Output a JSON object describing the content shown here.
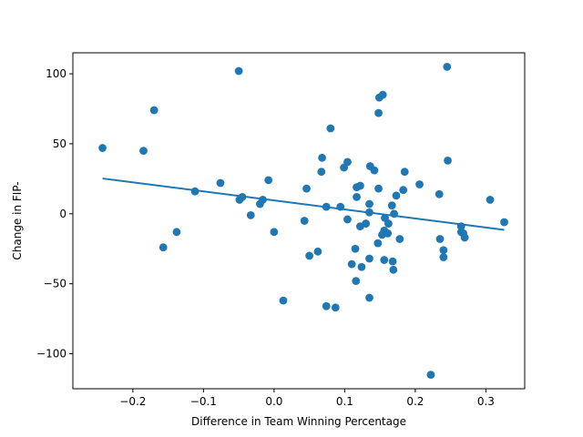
{
  "chart_data": {
    "type": "scatter",
    "xlabel": "Difference in Team Winning Percentage",
    "ylabel": "Change in FIP-",
    "xlim": [
      -0.285,
      0.355
    ],
    "ylim": [
      -125,
      115
    ],
    "grid": false,
    "x_ticks": [
      -0.2,
      -0.1,
      0.0,
      0.1,
      0.2,
      0.3
    ],
    "x_tick_labels": [
      "−0.2",
      "−0.1",
      "0.0",
      "0.1",
      "0.2",
      "0.3"
    ],
    "y_ticks": [
      -100,
      -50,
      0,
      50,
      100
    ],
    "y_tick_labels": [
      "−100",
      "−50",
      "0",
      "50",
      "100"
    ],
    "marker_color": "#1f77b4",
    "line_color": "#1f77b4",
    "points": [
      {
        "x": -0.243,
        "y": 47
      },
      {
        "x": -0.185,
        "y": 45
      },
      {
        "x": -0.17,
        "y": 74
      },
      {
        "x": -0.157,
        "y": -24
      },
      {
        "x": -0.138,
        "y": -13
      },
      {
        "x": -0.112,
        "y": 16
      },
      {
        "x": -0.076,
        "y": 22
      },
      {
        "x": -0.05,
        "y": 102
      },
      {
        "x": -0.049,
        "y": 10
      },
      {
        "x": -0.045,
        "y": 12
      },
      {
        "x": -0.033,
        "y": -1
      },
      {
        "x": -0.02,
        "y": 7
      },
      {
        "x": -0.016,
        "y": 10
      },
      {
        "x": -0.008,
        "y": 24
      },
      {
        "x": 0.0,
        "y": -13
      },
      {
        "x": 0.013,
        "y": -62
      },
      {
        "x": 0.043,
        "y": -5
      },
      {
        "x": 0.046,
        "y": 18
      },
      {
        "x": 0.05,
        "y": -30
      },
      {
        "x": 0.062,
        "y": -27
      },
      {
        "x": 0.067,
        "y": 30
      },
      {
        "x": 0.068,
        "y": 40
      },
      {
        "x": 0.074,
        "y": -66
      },
      {
        "x": 0.074,
        "y": 5
      },
      {
        "x": 0.08,
        "y": 61
      },
      {
        "x": 0.087,
        "y": -67
      },
      {
        "x": 0.094,
        "y": 5
      },
      {
        "x": 0.099,
        "y": 33
      },
      {
        "x": 0.104,
        "y": -4
      },
      {
        "x": 0.104,
        "y": 37
      },
      {
        "x": 0.11,
        "y": -36
      },
      {
        "x": 0.115,
        "y": -25
      },
      {
        "x": 0.116,
        "y": -48
      },
      {
        "x": 0.117,
        "y": 12
      },
      {
        "x": 0.117,
        "y": 19
      },
      {
        "x": 0.122,
        "y": -9
      },
      {
        "x": 0.122,
        "y": 20
      },
      {
        "x": 0.124,
        "y": -38
      },
      {
        "x": 0.13,
        "y": -7
      },
      {
        "x": 0.135,
        "y": -60
      },
      {
        "x": 0.135,
        "y": -32
      },
      {
        "x": 0.135,
        "y": 1
      },
      {
        "x": 0.135,
        "y": 7
      },
      {
        "x": 0.136,
        "y": 34
      },
      {
        "x": 0.142,
        "y": 31
      },
      {
        "x": 0.147,
        "y": -21
      },
      {
        "x": 0.148,
        "y": 18
      },
      {
        "x": 0.148,
        "y": 72
      },
      {
        "x": 0.149,
        "y": 83
      },
      {
        "x": 0.153,
        "y": -15
      },
      {
        "x": 0.154,
        "y": 85
      },
      {
        "x": 0.156,
        "y": -12
      },
      {
        "x": 0.156,
        "y": -33
      },
      {
        "x": 0.157,
        "y": -3
      },
      {
        "x": 0.161,
        "y": -14
      },
      {
        "x": 0.162,
        "y": -7
      },
      {
        "x": 0.167,
        "y": 6
      },
      {
        "x": 0.168,
        "y": -34
      },
      {
        "x": 0.169,
        "y": -40
      },
      {
        "x": 0.17,
        "y": 0
      },
      {
        "x": 0.173,
        "y": 13
      },
      {
        "x": 0.178,
        "y": -18
      },
      {
        "x": 0.183,
        "y": 17
      },
      {
        "x": 0.185,
        "y": 30
      },
      {
        "x": 0.206,
        "y": 21
      },
      {
        "x": 0.222,
        "y": -115
      },
      {
        "x": 0.234,
        "y": 14
      },
      {
        "x": 0.235,
        "y": -18
      },
      {
        "x": 0.24,
        "y": -26
      },
      {
        "x": 0.24,
        "y": -31
      },
      {
        "x": 0.245,
        "y": 105
      },
      {
        "x": 0.246,
        "y": 38
      },
      {
        "x": 0.265,
        "y": -9
      },
      {
        "x": 0.265,
        "y": -13
      },
      {
        "x": 0.268,
        "y": -14
      },
      {
        "x": 0.27,
        "y": -17
      },
      {
        "x": 0.306,
        "y": 10
      },
      {
        "x": 0.326,
        "y": -6
      }
    ],
    "trend_line": {
      "x": [
        -0.243,
        0.326
      ],
      "y": [
        25.2,
        -11.5
      ]
    }
  }
}
